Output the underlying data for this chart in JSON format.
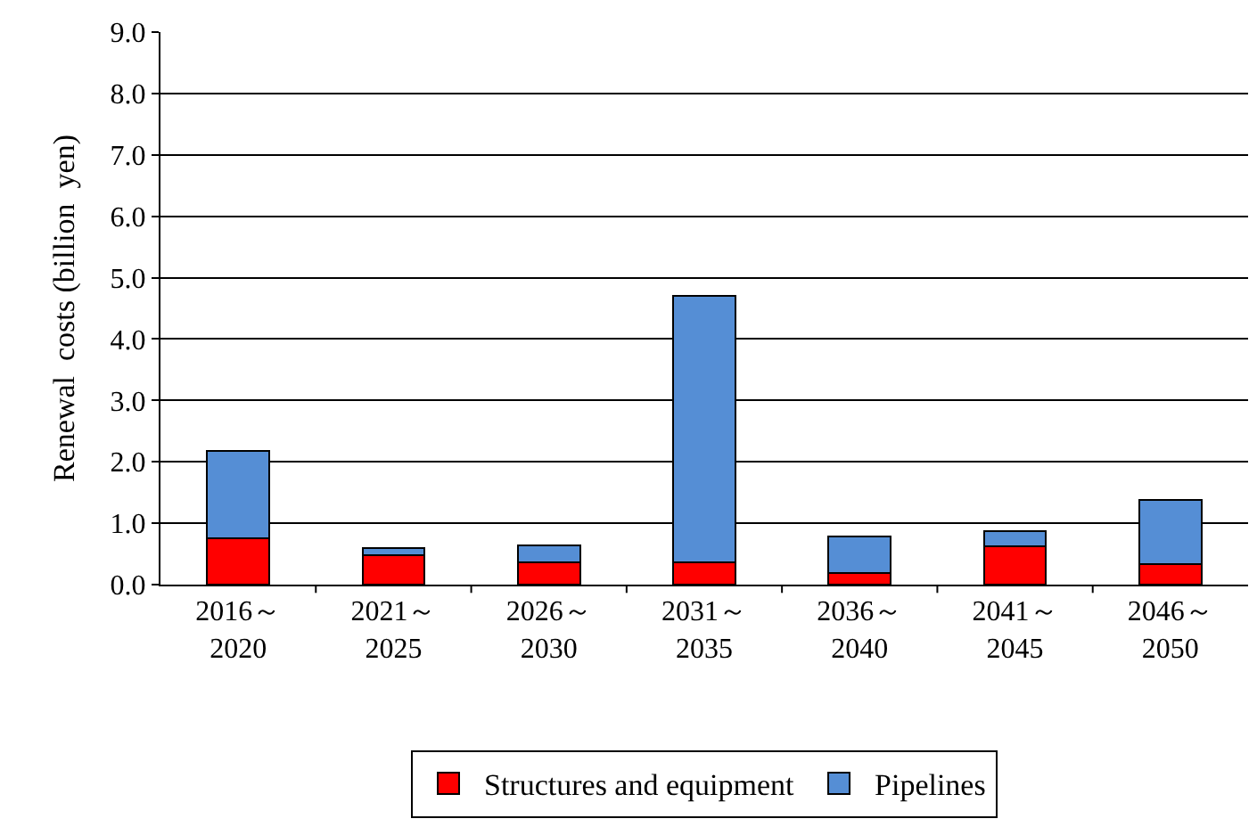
{
  "chart_data": {
    "type": "bar",
    "stacked": true,
    "ylabel": "Renewal  costs (billion  yen)",
    "categories": [
      "2016～\n2020",
      "2021～\n2025",
      "2026～\n2030",
      "2031～\n2035",
      "2036～\n2040",
      "2041～\n2045",
      "2046～\n2050"
    ],
    "series": [
      {
        "name": "Structures and equipment",
        "color": "#ff0000",
        "values": [
          0.75,
          0.48,
          0.37,
          0.37,
          0.19,
          0.63,
          0.33
        ]
      },
      {
        "name": "Pipelines",
        "color": "#558ed5",
        "values": [
          1.43,
          0.12,
          0.27,
          4.34,
          0.6,
          0.24,
          1.05
        ]
      }
    ],
    "ylim": [
      0,
      9
    ],
    "yticks": [
      {
        "value": 0,
        "label": "0.0"
      },
      {
        "value": 1,
        "label": "1.0"
      },
      {
        "value": 2,
        "label": "2.0"
      },
      {
        "value": 3,
        "label": "3.0"
      },
      {
        "value": 4,
        "label": "4.0"
      },
      {
        "value": 5,
        "label": "5.0"
      },
      {
        "value": 6,
        "label": "6.0"
      },
      {
        "value": 7,
        "label": "7.0"
      },
      {
        "value": 8,
        "label": "8.0"
      },
      {
        "value": 9,
        "label": "9.0"
      }
    ],
    "grid": "y",
    "legend": "bottom"
  }
}
